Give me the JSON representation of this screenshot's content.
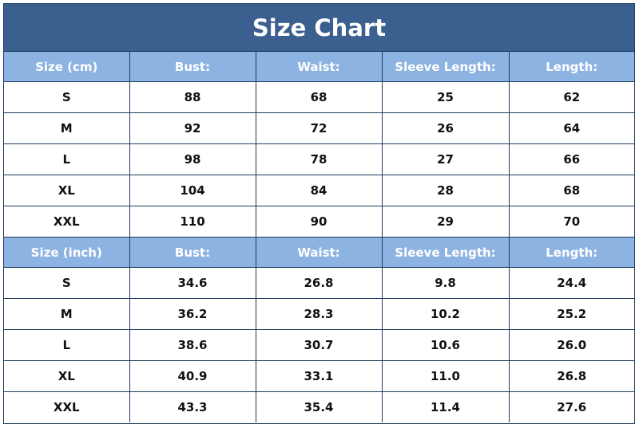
{
  "title": "Size Chart",
  "cm_section": {
    "headers": [
      "Size (cm)",
      "Bust:",
      "Waist:",
      "Sleeve Length:",
      "Length:"
    ],
    "rows": [
      [
        "S",
        "88",
        "68",
        "25",
        "62"
      ],
      [
        "M",
        "92",
        "72",
        "26",
        "64"
      ],
      [
        "L",
        "98",
        "78",
        "27",
        "66"
      ],
      [
        "XL",
        "104",
        "84",
        "28",
        "68"
      ],
      [
        "XXL",
        "110",
        "90",
        "29",
        "70"
      ]
    ]
  },
  "inch_section": {
    "headers": [
      "Size (inch)",
      "Bust:",
      "Waist:",
      "Sleeve Length:",
      "Length:"
    ],
    "rows": [
      [
        "S",
        "34.6",
        "26.8",
        "9.8",
        "24.4"
      ],
      [
        "M",
        "36.2",
        "28.3",
        "10.2",
        "25.2"
      ],
      [
        "L",
        "38.6",
        "30.7",
        "10.6",
        "26.0"
      ],
      [
        "XL",
        "40.9",
        "33.1",
        "11.0",
        "26.8"
      ],
      [
        "XXL",
        "43.3",
        "35.4",
        "11.4",
        "27.6"
      ]
    ]
  },
  "colors": {
    "title_bar": "#3b5f8f",
    "header_row": "#8db3e2",
    "border": "#1f3a5c"
  }
}
